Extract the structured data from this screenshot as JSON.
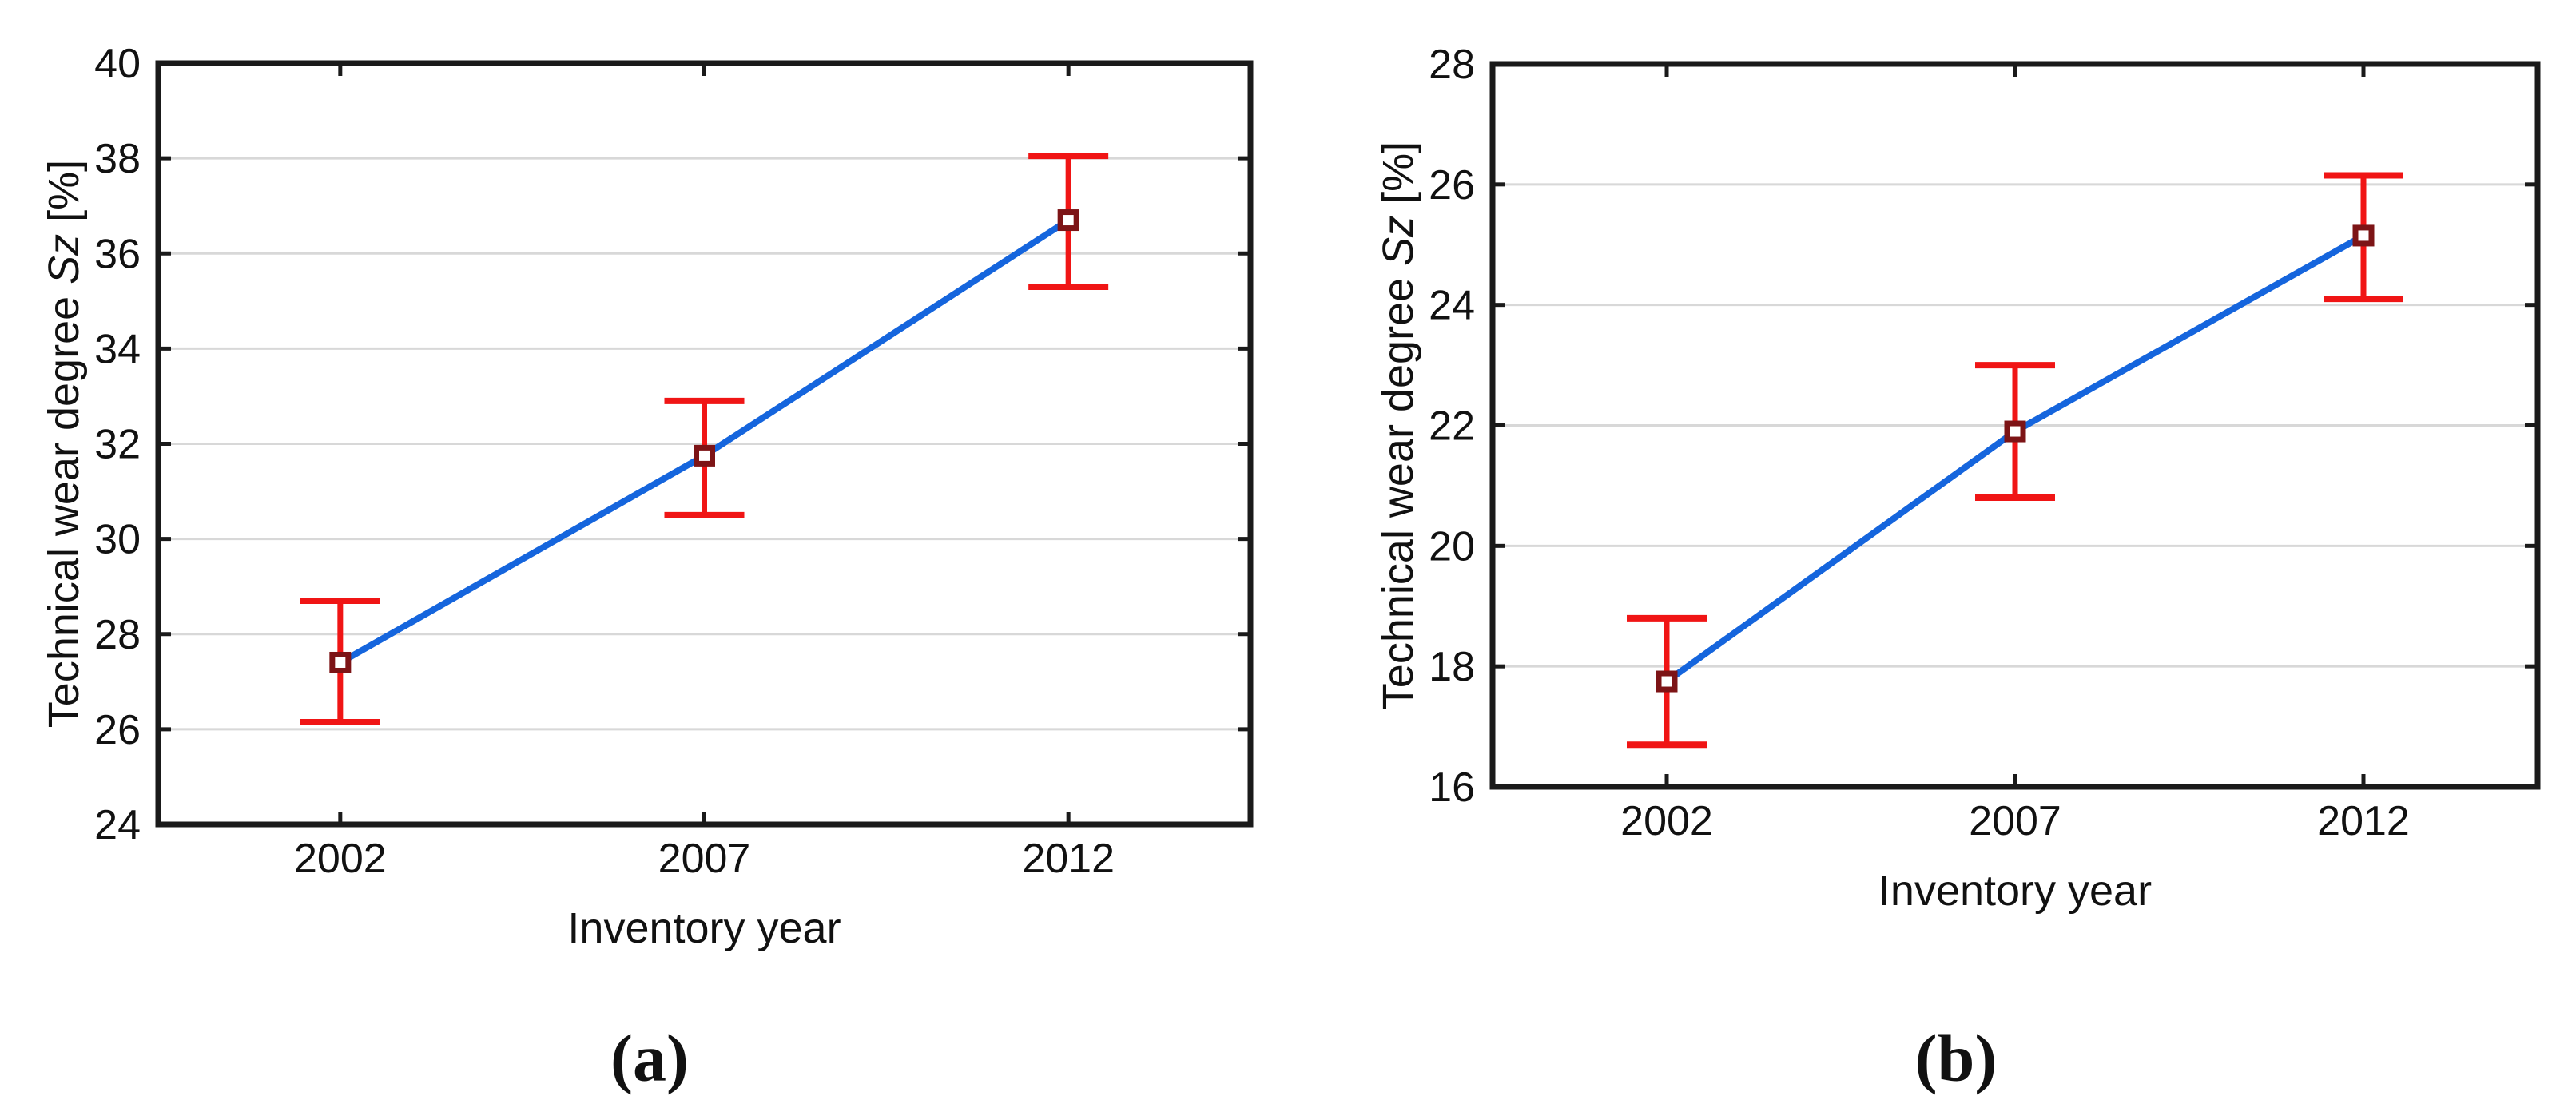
{
  "figure": {
    "background": "#ffffff",
    "caption_a": "(a)",
    "caption_b": "(b)"
  },
  "colors": {
    "series_line": "#1565dd",
    "error_bar": "#f01515",
    "marker_edge": "#7d1416",
    "marker_fill": "#ffffff",
    "grid_line": "#d8d8d8",
    "frame": "#1a1a1a",
    "text": "#111111"
  },
  "chart_data": [
    {
      "id": "a",
      "type": "line",
      "caption": "(a)",
      "xlabel": "Inventory year",
      "ylabel": "Technical wear degree Sz [%]",
      "ylabel_prefix": "Technical wear degree ",
      "ylabel_symbol_italic": "Sz",
      "ylabel_suffix": " [%]",
      "categories": [
        "2002",
        "2007",
        "2012"
      ],
      "ylim": [
        24,
        40
      ],
      "yticks": [
        24,
        26,
        28,
        30,
        32,
        34,
        36,
        38,
        40
      ],
      "ytick_labels": [
        "24",
        "26",
        "28",
        "30",
        "32",
        "34",
        "36",
        "38",
        "40"
      ],
      "grid": "horizontal",
      "legend": "none",
      "series": [
        {
          "marker": "open-square",
          "values": [
            27.4,
            31.75,
            36.7
          ],
          "error_upper": [
            28.7,
            32.9,
            38.05
          ],
          "error_lower": [
            26.15,
            30.5,
            35.3
          ]
        }
      ]
    },
    {
      "id": "b",
      "type": "line",
      "caption": "(b)",
      "xlabel": "Inventory year",
      "ylabel": "Technical wear degree Sz [%]",
      "ylabel_prefix": "Technical wear degree ",
      "ylabel_symbol_italic": "Sz",
      "ylabel_suffix": " [%]",
      "categories": [
        "2002",
        "2007",
        "2012"
      ],
      "ylim": [
        16,
        28
      ],
      "yticks": [
        16,
        18,
        20,
        22,
        24,
        26,
        28
      ],
      "ytick_labels": [
        "16",
        "18",
        "20",
        "22",
        "24",
        "26",
        "28"
      ],
      "grid": "horizontal",
      "legend": "none",
      "series": [
        {
          "marker": "open-square",
          "values": [
            17.75,
            21.9,
            25.15
          ],
          "error_upper": [
            18.8,
            23.0,
            26.15
          ],
          "error_lower": [
            16.7,
            20.8,
            24.1
          ]
        }
      ]
    }
  ]
}
